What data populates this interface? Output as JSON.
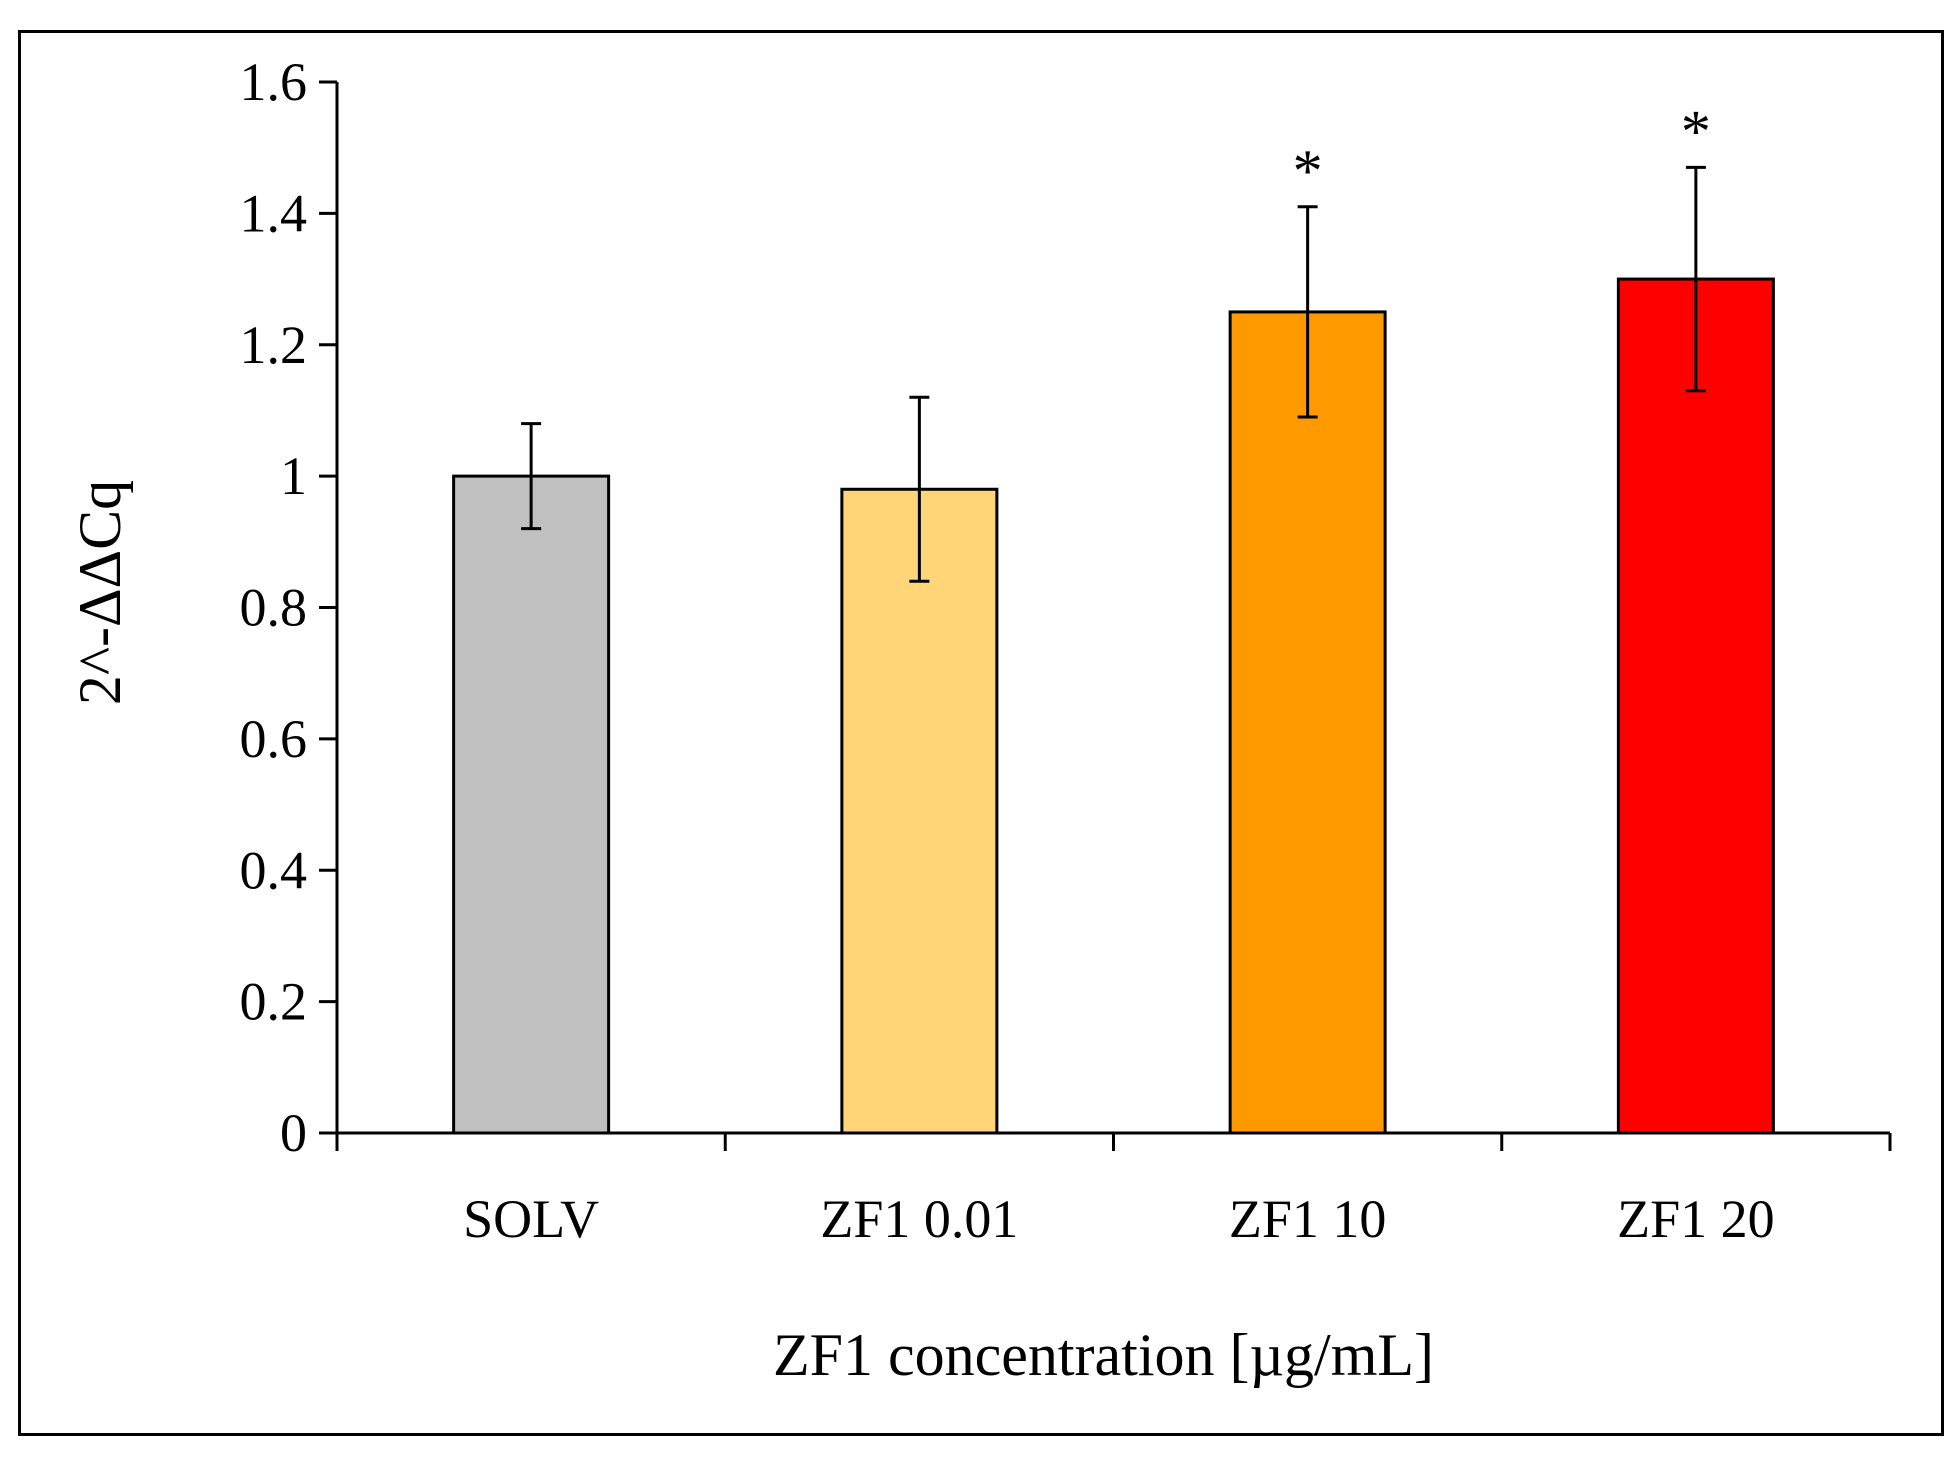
{
  "chart_data": {
    "type": "bar",
    "categories": [
      "SOLV",
      "ZF1 0.01",
      "ZF1 10",
      "ZF1 20"
    ],
    "values": [
      1.0,
      0.98,
      1.25,
      1.3
    ],
    "error_upper": [
      1.08,
      1.12,
      1.41,
      1.47
    ],
    "error_lower": [
      0.92,
      0.84,
      1.09,
      1.13
    ],
    "bar_colors": [
      "#c0c0c0",
      "#ffd577",
      "#ff9900",
      "#ff0000"
    ],
    "significance": [
      "",
      "",
      "*",
      "*"
    ],
    "xlabel": "ZF1 concentration [µg/mL]",
    "ylabel": "2^-ΔΔCq",
    "ylim": [
      0,
      1.6
    ],
    "yticks": [
      "0",
      "0.2",
      "0.4",
      "0.6",
      "0.8",
      "1",
      "1.2",
      "1.4",
      "1.6"
    ],
    "grid": false,
    "legend": "none"
  }
}
